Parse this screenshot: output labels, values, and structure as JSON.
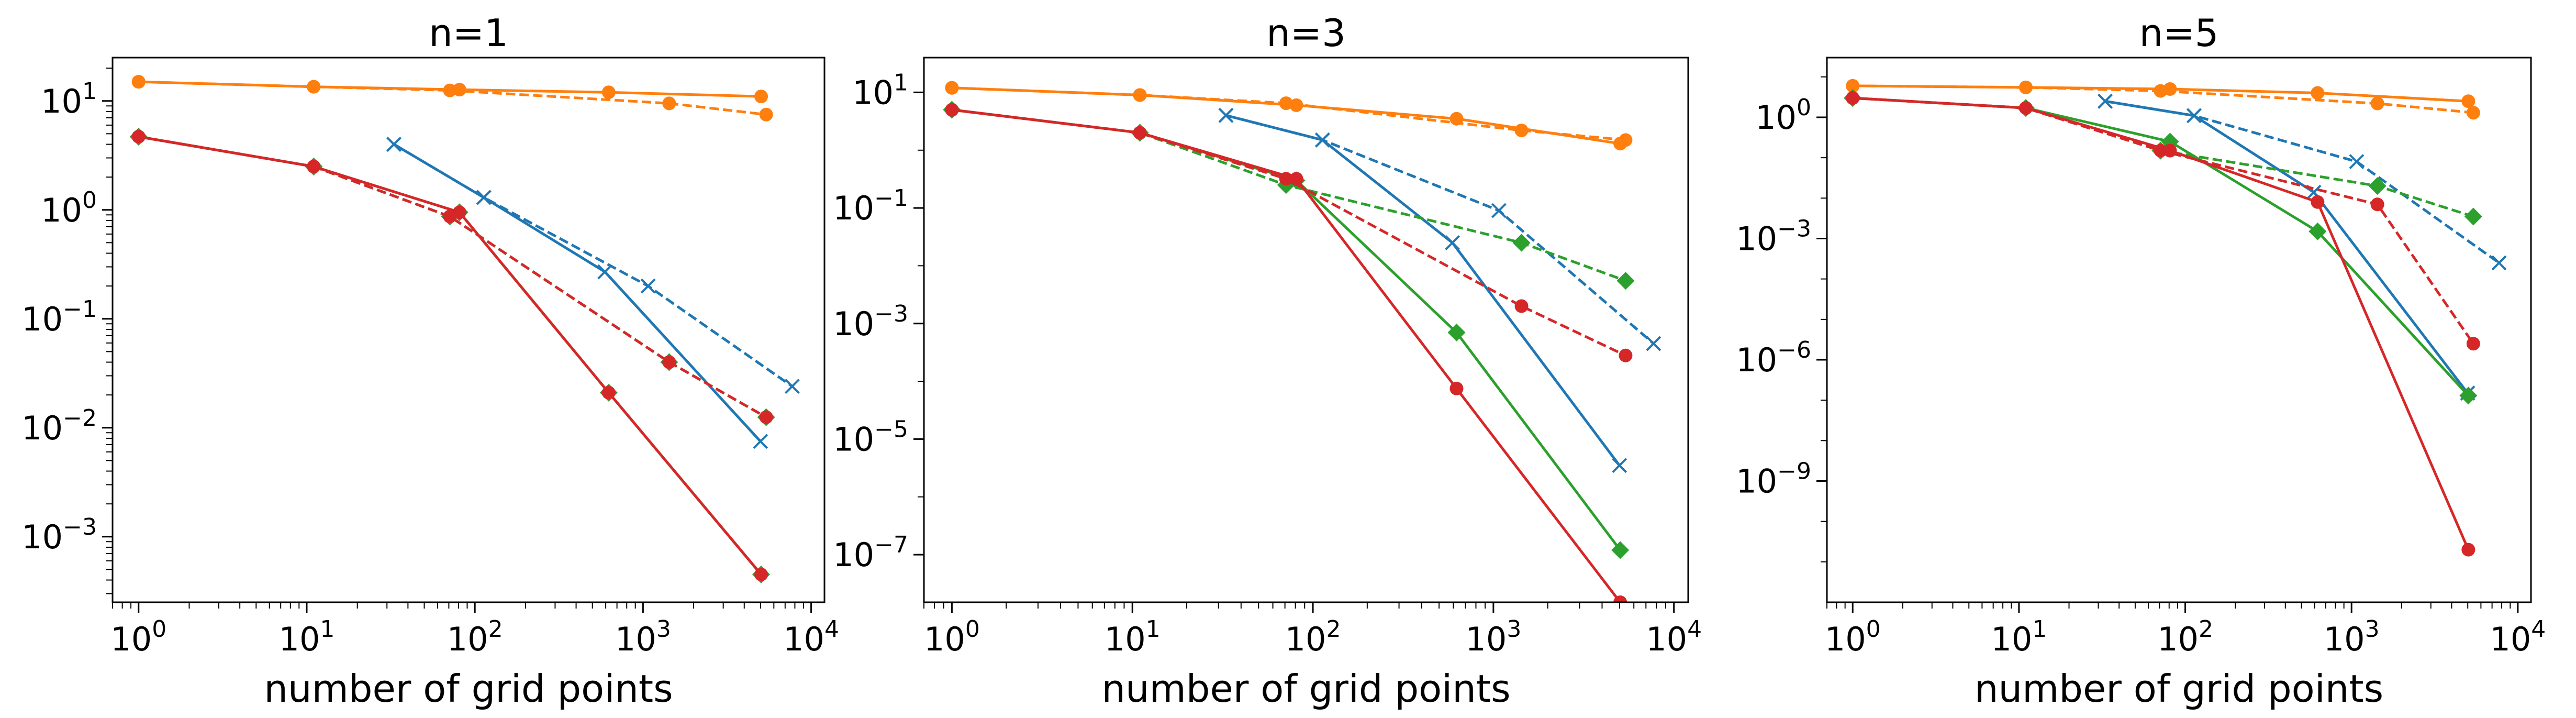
{
  "figure": {
    "x_axis_label": "number of grid points"
  },
  "colors": {
    "blue": "#1f77b4",
    "orange": "#ff7f0e",
    "green": "#2ca02c",
    "red": "#d62728"
  },
  "chart_data": [
    {
      "type": "line",
      "title": "n=1",
      "xlabel": "number of grid points",
      "ylabel": "",
      "xscale": "log",
      "yscale": "log",
      "xlim": [
        0.7,
        12000
      ],
      "ylim": [
        0.00025,
        25
      ],
      "xticks": [
        {
          "value": 1,
          "label": "10^0"
        },
        {
          "value": 10,
          "label": "10^1"
        },
        {
          "value": 100,
          "label": "10^2"
        },
        {
          "value": 1000,
          "label": "10^3"
        },
        {
          "value": 10000,
          "label": "10^4"
        }
      ],
      "yticks": [
        {
          "value": 0.001,
          "label": "10^-3"
        },
        {
          "value": 0.01,
          "label": "10^-2"
        },
        {
          "value": 0.1,
          "label": "10^-1"
        },
        {
          "value": 1,
          "label": "10^0"
        },
        {
          "value": 10,
          "label": "10^1"
        }
      ],
      "series": [
        {
          "color": "#ff7f0e",
          "dash": "solid",
          "marker": "circle",
          "x": [
            1,
            11,
            81,
            625,
            5041
          ],
          "y": [
            15,
            13.5,
            12.7,
            12,
            11
          ]
        },
        {
          "color": "#ff7f0e",
          "dash": "dashed",
          "marker": "circle",
          "x": [
            1,
            11,
            71,
            1431,
            5401
          ],
          "y": [
            15,
            13.5,
            12.5,
            9.5,
            7.5
          ]
        },
        {
          "color": "#1f77b4",
          "dash": "solid",
          "marker": "x",
          "x": [
            33,
            113,
            593,
            4993
          ],
          "y": [
            4,
            1.3,
            0.27,
            0.0075
          ]
        },
        {
          "color": "#1f77b4",
          "dash": "dashed",
          "marker": "x",
          "x": [
            33,
            113,
            1073,
            7713
          ],
          "y": [
            4,
            1.3,
            0.2,
            0.024
          ]
        },
        {
          "color": "#2ca02c",
          "dash": "solid",
          "marker": "diamond",
          "x": [
            1,
            11,
            81,
            625,
            5041
          ],
          "y": [
            4.7,
            2.5,
            0.95,
            0.021,
            0.00045
          ]
        },
        {
          "color": "#2ca02c",
          "dash": "dashed",
          "marker": "diamond",
          "x": [
            1,
            11,
            71,
            1431,
            5401
          ],
          "y": [
            4.7,
            2.5,
            0.87,
            0.04,
            0.0125
          ]
        },
        {
          "color": "#d62728",
          "dash": "solid",
          "marker": "circle",
          "x": [
            1,
            11,
            81,
            625,
            5041
          ],
          "y": [
            4.7,
            2.5,
            0.95,
            0.021,
            0.00045
          ]
        },
        {
          "color": "#d62728",
          "dash": "dashed",
          "marker": "circle",
          "x": [
            1,
            11,
            71,
            1431,
            5401
          ],
          "y": [
            4.7,
            2.5,
            0.87,
            0.04,
            0.0125
          ]
        }
      ]
    },
    {
      "type": "line",
      "title": "n=3",
      "xlabel": "number of grid points",
      "ylabel": "",
      "xscale": "log",
      "yscale": "log",
      "xlim": [
        0.7,
        12000
      ],
      "ylim": [
        1.5e-08,
        40
      ],
      "xticks": [
        {
          "value": 1,
          "label": "10^0"
        },
        {
          "value": 10,
          "label": "10^1"
        },
        {
          "value": 100,
          "label": "10^2"
        },
        {
          "value": 1000,
          "label": "10^3"
        },
        {
          "value": 10000,
          "label": "10^4"
        }
      ],
      "yticks": [
        {
          "value": 1e-07,
          "label": "10^-7"
        },
        {
          "value": 1e-05,
          "label": "10^-5"
        },
        {
          "value": 0.001,
          "label": "10^-3"
        },
        {
          "value": 0.1,
          "label": "10^-1"
        },
        {
          "value": 10,
          "label": "10^1"
        }
      ],
      "series": [
        {
          "color": "#ff7f0e",
          "dash": "solid",
          "marker": "circle",
          "x": [
            1,
            11,
            81,
            625,
            5041
          ],
          "y": [
            12,
            9,
            6,
            3.5,
            1.3
          ]
        },
        {
          "color": "#ff7f0e",
          "dash": "dashed",
          "marker": "circle",
          "x": [
            1,
            11,
            71,
            1431,
            5401
          ],
          "y": [
            12,
            9,
            6.5,
            2.2,
            1.5
          ]
        },
        {
          "color": "#1f77b4",
          "dash": "solid",
          "marker": "x",
          "x": [
            33,
            113,
            593,
            4993
          ],
          "y": [
            4,
            1.5,
            0.025,
            3.5e-06
          ]
        },
        {
          "color": "#1f77b4",
          "dash": "dashed",
          "marker": "x",
          "x": [
            33,
            113,
            1073,
            7713
          ],
          "y": [
            4,
            1.5,
            0.09,
            0.00045
          ]
        },
        {
          "color": "#2ca02c",
          "dash": "solid",
          "marker": "diamond",
          "x": [
            1,
            11,
            81,
            625,
            5041
          ],
          "y": [
            5,
            2,
            0.3,
            0.0007,
            1.2e-07
          ]
        },
        {
          "color": "#2ca02c",
          "dash": "dashed",
          "marker": "diamond",
          "x": [
            1,
            11,
            71,
            1431,
            5401
          ],
          "y": [
            5,
            2,
            0.25,
            0.025,
            0.0055
          ]
        },
        {
          "color": "#d62728",
          "dash": "solid",
          "marker": "circle",
          "x": [
            1,
            11,
            81,
            625,
            5041
          ],
          "y": [
            5,
            2,
            0.32,
            7.5e-05,
            1.5e-08
          ]
        },
        {
          "color": "#d62728",
          "dash": "dashed",
          "marker": "circle",
          "x": [
            1,
            11,
            71,
            1431,
            5401
          ],
          "y": [
            5,
            2,
            0.32,
            0.002,
            0.00028
          ]
        }
      ]
    },
    {
      "type": "line",
      "title": "n=5",
      "xlabel": "number of grid points",
      "ylabel": "",
      "xscale": "log",
      "yscale": "log",
      "xlim": [
        0.7,
        12000
      ],
      "ylim": [
        1e-12,
        30
      ],
      "xticks": [
        {
          "value": 1,
          "label": "10^0"
        },
        {
          "value": 10,
          "label": "10^1"
        },
        {
          "value": 100,
          "label": "10^2"
        },
        {
          "value": 1000,
          "label": "10^3"
        },
        {
          "value": 10000,
          "label": "10^4"
        }
      ],
      "yticks": [
        {
          "value": 1e-09,
          "label": "10^-9"
        },
        {
          "value": 1e-06,
          "label": "10^-6"
        },
        {
          "value": 0.001,
          "label": "10^-3"
        },
        {
          "value": 1,
          "label": "10^0"
        }
      ],
      "series": [
        {
          "color": "#ff7f0e",
          "dash": "solid",
          "marker": "circle",
          "x": [
            1,
            11,
            81,
            625,
            5041
          ],
          "y": [
            6,
            5.5,
            5,
            4,
            2.5
          ]
        },
        {
          "color": "#ff7f0e",
          "dash": "dashed",
          "marker": "circle",
          "x": [
            1,
            11,
            71,
            1431,
            5401
          ],
          "y": [
            6,
            5.5,
            4.5,
            2.2,
            1.3
          ]
        },
        {
          "color": "#1f77b4",
          "dash": "solid",
          "marker": "x",
          "x": [
            33,
            113,
            593,
            4993
          ],
          "y": [
            2.5,
            1.1,
            0.014,
            1.5e-07
          ]
        },
        {
          "color": "#1f77b4",
          "dash": "dashed",
          "marker": "x",
          "x": [
            33,
            113,
            1073,
            7713
          ],
          "y": [
            2.5,
            1.1,
            0.08,
            0.00025
          ]
        },
        {
          "color": "#2ca02c",
          "dash": "solid",
          "marker": "diamond",
          "x": [
            1,
            11,
            81,
            625,
            5041
          ],
          "y": [
            3,
            1.7,
            0.25,
            0.0015,
            1.3e-07
          ]
        },
        {
          "color": "#2ca02c",
          "dash": "dashed",
          "marker": "diamond",
          "x": [
            1,
            11,
            71,
            1431,
            5401
          ],
          "y": [
            3,
            1.7,
            0.15,
            0.02,
            0.0035
          ]
        },
        {
          "color": "#d62728",
          "dash": "solid",
          "marker": "circle",
          "x": [
            1,
            11,
            81,
            625,
            5041
          ],
          "y": [
            3,
            1.7,
            0.15,
            0.008,
            2e-11
          ]
        },
        {
          "color": "#d62728",
          "dash": "dashed",
          "marker": "circle",
          "x": [
            1,
            11,
            71,
            1431,
            5401
          ],
          "y": [
            3,
            1.7,
            0.15,
            0.007,
            2.5e-06
          ]
        }
      ]
    }
  ]
}
